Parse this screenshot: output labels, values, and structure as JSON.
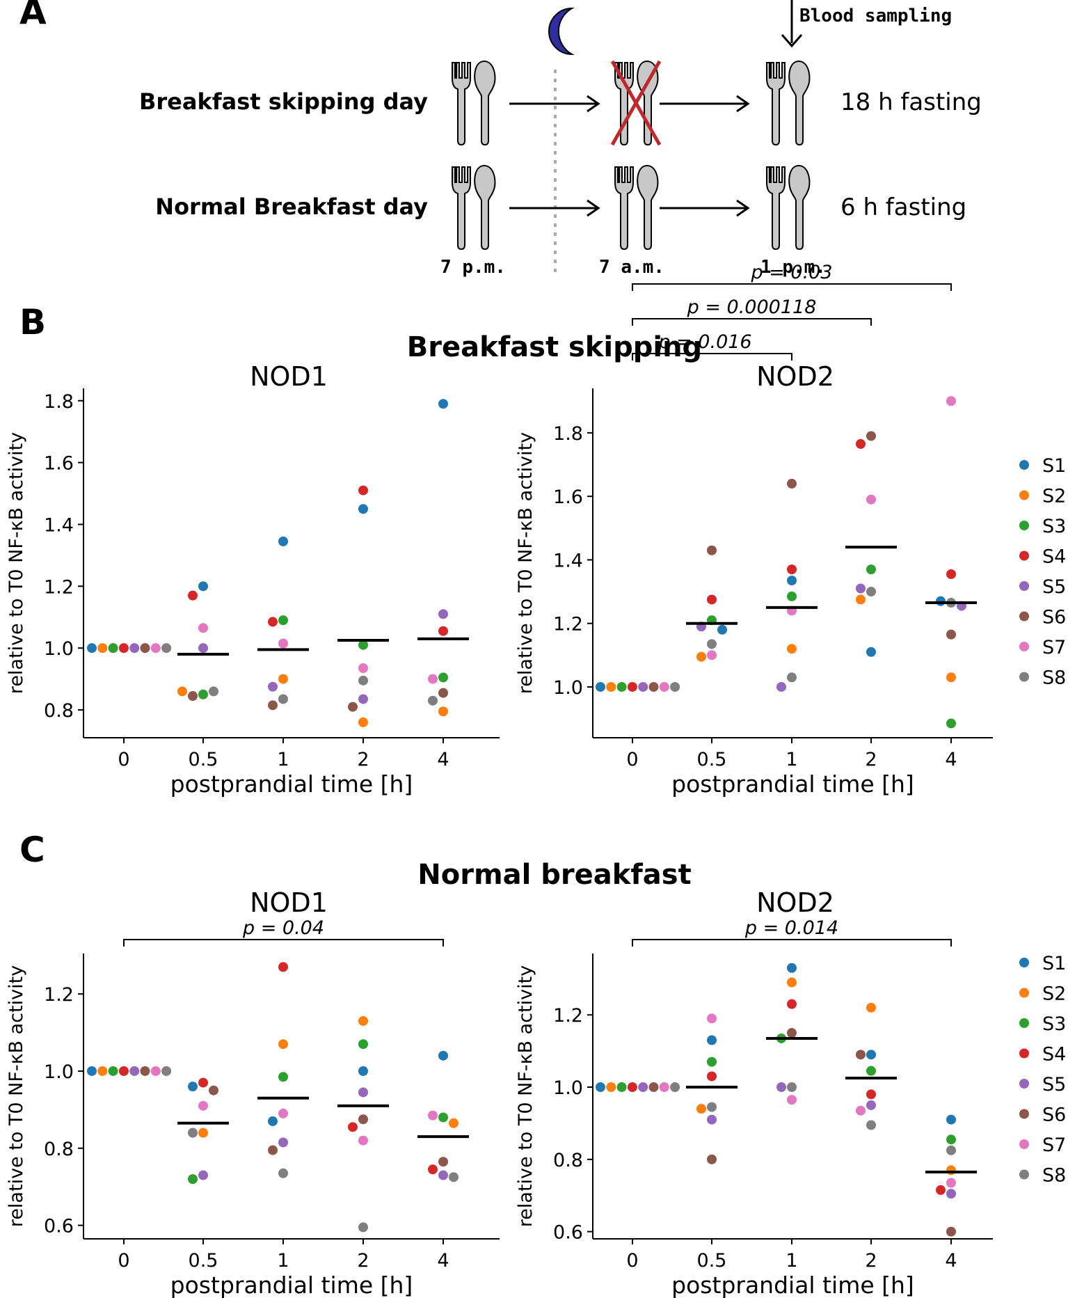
{
  "panel_labels": {
    "a": "A",
    "b": "B",
    "c": "C"
  },
  "schedule": {
    "row1_label": "Breakfast skipping day",
    "row2_label": "Normal Breakfast day",
    "row1_fasting": "18 h fasting",
    "row2_fasting": "6 h fasting",
    "times": [
      "7 p.m.",
      "7 a.m.",
      "1 p.m."
    ],
    "blood_sampling": "Blood sampling",
    "moon_color": "#2e2ea0",
    "cross_color": "#c0282d"
  },
  "sections": [
    {
      "title": "Breakfast skipping"
    },
    {
      "title": "Normal breakfast"
    }
  ],
  "legend": [
    {
      "label": "S1",
      "color": "#1f77b4"
    },
    {
      "label": "S2",
      "color": "#ff7f0e"
    },
    {
      "label": "S3",
      "color": "#2ca02c"
    },
    {
      "label": "S4",
      "color": "#d62728"
    },
    {
      "label": "S5",
      "color": "#9467bd"
    },
    {
      "label": "S6",
      "color": "#8c564b"
    },
    {
      "label": "S7",
      "color": "#e377c2"
    },
    {
      "label": "S8",
      "color": "#7f7f7f"
    }
  ],
  "chart_data": [
    {
      "type": "scatter",
      "title": "NOD1",
      "section": "Breakfast skipping",
      "xlabel": "postprandial time [h]",
      "ylabel": "relative to T0 NF-κB activity",
      "categories": [
        "0",
        "0.5",
        "1",
        "2",
        "4"
      ],
      "ylim": [
        0.71,
        1.84
      ],
      "yticks": [
        0.8,
        1.0,
        1.2,
        1.4,
        1.6,
        1.8
      ],
      "ytick_labels": [
        "0.8",
        "1.0",
        "1.2",
        "1.4",
        "1.6",
        "1.8"
      ],
      "means": [
        1.0,
        0.98,
        0.995,
        1.025,
        1.03
      ],
      "points": [
        [
          {
            "s": 0,
            "y": 1.0
          },
          {
            "s": 1,
            "y": 1.0
          },
          {
            "s": 2,
            "y": 1.0
          },
          {
            "s": 3,
            "y": 1.0
          },
          {
            "s": 4,
            "y": 1.0
          },
          {
            "s": 5,
            "y": 1.0
          },
          {
            "s": 6,
            "y": 1.0
          },
          {
            "s": 7,
            "y": 1.0
          }
        ],
        [
          {
            "s": 0,
            "y": 1.2
          },
          {
            "s": 3,
            "y": 1.17
          },
          {
            "s": 6,
            "y": 1.065
          },
          {
            "s": 4,
            "y": 1.0
          },
          {
            "s": 2,
            "y": 0.85
          },
          {
            "s": 5,
            "y": 0.845
          },
          {
            "s": 7,
            "y": 0.86
          },
          {
            "s": 1,
            "y": 0.86
          }
        ],
        [
          {
            "s": 0,
            "y": 1.345
          },
          {
            "s": 2,
            "y": 1.09
          },
          {
            "s": 3,
            "y": 1.085
          },
          {
            "s": 6,
            "y": 1.015
          },
          {
            "s": 1,
            "y": 0.9
          },
          {
            "s": 4,
            "y": 0.875
          },
          {
            "s": 7,
            "y": 0.835
          },
          {
            "s": 5,
            "y": 0.815
          }
        ],
        [
          {
            "s": 3,
            "y": 1.51
          },
          {
            "s": 0,
            "y": 1.45
          },
          {
            "s": 2,
            "y": 1.01
          },
          {
            "s": 6,
            "y": 0.935
          },
          {
            "s": 7,
            "y": 0.895
          },
          {
            "s": 4,
            "y": 0.835
          },
          {
            "s": 5,
            "y": 0.81
          },
          {
            "s": 1,
            "y": 0.76
          }
        ],
        [
          {
            "s": 0,
            "y": 1.79
          },
          {
            "s": 4,
            "y": 1.11
          },
          {
            "s": 3,
            "y": 1.055
          },
          {
            "s": 2,
            "y": 0.905
          },
          {
            "s": 6,
            "y": 0.9
          },
          {
            "s": 5,
            "y": 0.855
          },
          {
            "s": 7,
            "y": 0.83
          },
          {
            "s": 1,
            "y": 0.795
          }
        ]
      ],
      "brackets": []
    },
    {
      "type": "scatter",
      "title": "NOD2",
      "section": "Breakfast skipping",
      "xlabel": "postprandial time [h]",
      "ylabel": "relative to T0 NF-κB activity",
      "categories": [
        "0",
        "0.5",
        "1",
        "2",
        "4"
      ],
      "ylim": [
        0.84,
        1.94
      ],
      "yticks": [
        1.0,
        1.2,
        1.4,
        1.6,
        1.8
      ],
      "ytick_labels": [
        "1.0",
        "1.2",
        "1.4",
        "1.6",
        "1.8"
      ],
      "means": [
        1.0,
        1.2,
        1.25,
        1.44,
        1.265
      ],
      "points": [
        [
          {
            "s": 0,
            "y": 1.0
          },
          {
            "s": 1,
            "y": 1.0
          },
          {
            "s": 2,
            "y": 1.0
          },
          {
            "s": 3,
            "y": 1.0
          },
          {
            "s": 4,
            "y": 1.0
          },
          {
            "s": 5,
            "y": 1.0
          },
          {
            "s": 6,
            "y": 1.0
          },
          {
            "s": 7,
            "y": 1.0
          }
        ],
        [
          {
            "s": 5,
            "y": 1.43
          },
          {
            "s": 3,
            "y": 1.275
          },
          {
            "s": 2,
            "y": 1.21
          },
          {
            "s": 4,
            "y": 1.19
          },
          {
            "s": 0,
            "y": 1.18
          },
          {
            "s": 7,
            "y": 1.135
          },
          {
            "s": 6,
            "y": 1.1
          },
          {
            "s": 1,
            "y": 1.095
          }
        ],
        [
          {
            "s": 5,
            "y": 1.64
          },
          {
            "s": 3,
            "y": 1.37
          },
          {
            "s": 0,
            "y": 1.335
          },
          {
            "s": 2,
            "y": 1.285
          },
          {
            "s": 6,
            "y": 1.24
          },
          {
            "s": 1,
            "y": 1.12
          },
          {
            "s": 7,
            "y": 1.03
          },
          {
            "s": 4,
            "y": 1.0
          }
        ],
        [
          {
            "s": 5,
            "y": 1.79
          },
          {
            "s": 3,
            "y": 1.765
          },
          {
            "s": 6,
            "y": 1.59
          },
          {
            "s": 2,
            "y": 1.37
          },
          {
            "s": 7,
            "y": 1.3
          },
          {
            "s": 4,
            "y": 1.31
          },
          {
            "s": 1,
            "y": 1.275
          },
          {
            "s": 0,
            "y": 1.11
          }
        ],
        [
          {
            "s": 6,
            "y": 1.9
          },
          {
            "s": 3,
            "y": 1.355
          },
          {
            "s": 7,
            "y": 1.265
          },
          {
            "s": 0,
            "y": 1.27
          },
          {
            "s": 4,
            "y": 1.255
          },
          {
            "s": 5,
            "y": 1.165
          },
          {
            "s": 1,
            "y": 1.03
          },
          {
            "s": 2,
            "y": 0.885
          }
        ]
      ],
      "brackets": [
        {
          "from": 0,
          "to": 2,
          "label": "p = 0.016"
        },
        {
          "from": 0,
          "to": 3,
          "label": "p = 0.000118"
        },
        {
          "from": 0,
          "to": 4,
          "label": "p = 0.03"
        }
      ]
    },
    {
      "type": "scatter",
      "title": "NOD1",
      "section": "Normal breakfast",
      "xlabel": "postprandial time [h]",
      "ylabel": "relative to T0 NF-κB activity",
      "categories": [
        "0",
        "0.5",
        "1",
        "2",
        "4"
      ],
      "ylim": [
        0.565,
        1.305
      ],
      "yticks": [
        0.6,
        0.8,
        1.0,
        1.2
      ],
      "ytick_labels": [
        "0.6",
        "0.8",
        "1.0",
        "1.2"
      ],
      "means": [
        1.0,
        0.865,
        0.93,
        0.91,
        0.83
      ],
      "points": [
        [
          {
            "s": 0,
            "y": 1.0
          },
          {
            "s": 1,
            "y": 1.0
          },
          {
            "s": 2,
            "y": 1.0
          },
          {
            "s": 3,
            "y": 1.0
          },
          {
            "s": 4,
            "y": 1.0
          },
          {
            "s": 5,
            "y": 1.0
          },
          {
            "s": 6,
            "y": 1.0
          },
          {
            "s": 7,
            "y": 1.0
          }
        ],
        [
          {
            "s": 3,
            "y": 0.97
          },
          {
            "s": 0,
            "y": 0.96
          },
          {
            "s": 5,
            "y": 0.95
          },
          {
            "s": 6,
            "y": 0.91
          },
          {
            "s": 1,
            "y": 0.84
          },
          {
            "s": 7,
            "y": 0.84
          },
          {
            "s": 4,
            "y": 0.73
          },
          {
            "s": 2,
            "y": 0.72
          }
        ],
        [
          {
            "s": 3,
            "y": 1.27
          },
          {
            "s": 1,
            "y": 1.07
          },
          {
            "s": 2,
            "y": 0.985
          },
          {
            "s": 6,
            "y": 0.89
          },
          {
            "s": 0,
            "y": 0.87
          },
          {
            "s": 4,
            "y": 0.815
          },
          {
            "s": 5,
            "y": 0.795
          },
          {
            "s": 7,
            "y": 0.735
          }
        ],
        [
          {
            "s": 1,
            "y": 1.13
          },
          {
            "s": 2,
            "y": 1.07
          },
          {
            "s": 0,
            "y": 1.0
          },
          {
            "s": 4,
            "y": 0.945
          },
          {
            "s": 5,
            "y": 0.875
          },
          {
            "s": 3,
            "y": 0.855
          },
          {
            "s": 6,
            "y": 0.82
          },
          {
            "s": 7,
            "y": 0.595
          }
        ],
        [
          {
            "s": 0,
            "y": 1.04
          },
          {
            "s": 2,
            "y": 0.88
          },
          {
            "s": 6,
            "y": 0.885
          },
          {
            "s": 1,
            "y": 0.865
          },
          {
            "s": 5,
            "y": 0.765
          },
          {
            "s": 3,
            "y": 0.745
          },
          {
            "s": 4,
            "y": 0.73
          },
          {
            "s": 7,
            "y": 0.725
          }
        ]
      ],
      "brackets": [
        {
          "from": 0,
          "to": 4,
          "label": "p = 0.04"
        }
      ]
    },
    {
      "type": "scatter",
      "title": "NOD2",
      "section": "Normal breakfast",
      "xlabel": "postprandial time [h]",
      "ylabel": "relative to T0 NF-κB activity",
      "categories": [
        "0",
        "0.5",
        "1",
        "2",
        "4"
      ],
      "ylim": [
        0.58,
        1.37
      ],
      "yticks": [
        0.6,
        0.8,
        1.0,
        1.2
      ],
      "ytick_labels": [
        "0.6",
        "0.8",
        "1.0",
        "1.2"
      ],
      "means": [
        1.0,
        1.0,
        1.135,
        1.025,
        0.765
      ],
      "points": [
        [
          {
            "s": 0,
            "y": 1.0
          },
          {
            "s": 1,
            "y": 1.0
          },
          {
            "s": 2,
            "y": 1.0
          },
          {
            "s": 3,
            "y": 1.0
          },
          {
            "s": 4,
            "y": 1.0
          },
          {
            "s": 5,
            "y": 1.0
          },
          {
            "s": 6,
            "y": 1.0
          },
          {
            "s": 7,
            "y": 1.0
          }
        ],
        [
          {
            "s": 6,
            "y": 1.19
          },
          {
            "s": 0,
            "y": 1.13
          },
          {
            "s": 2,
            "y": 1.07
          },
          {
            "s": 3,
            "y": 1.03
          },
          {
            "s": 7,
            "y": 0.945
          },
          {
            "s": 1,
            "y": 0.94
          },
          {
            "s": 4,
            "y": 0.91
          },
          {
            "s": 5,
            "y": 0.8
          }
        ],
        [
          {
            "s": 0,
            "y": 1.33
          },
          {
            "s": 1,
            "y": 1.29
          },
          {
            "s": 3,
            "y": 1.23
          },
          {
            "s": 5,
            "y": 1.15
          },
          {
            "s": 2,
            "y": 1.135
          },
          {
            "s": 7,
            "y": 1.0
          },
          {
            "s": 4,
            "y": 1.0
          },
          {
            "s": 6,
            "y": 0.965
          }
        ],
        [
          {
            "s": 1,
            "y": 1.22
          },
          {
            "s": 0,
            "y": 1.09
          },
          {
            "s": 5,
            "y": 1.09
          },
          {
            "s": 2,
            "y": 1.045
          },
          {
            "s": 3,
            "y": 0.98
          },
          {
            "s": 4,
            "y": 0.95
          },
          {
            "s": 6,
            "y": 0.935
          },
          {
            "s": 7,
            "y": 0.895
          }
        ],
        [
          {
            "s": 0,
            "y": 0.91
          },
          {
            "s": 2,
            "y": 0.855
          },
          {
            "s": 7,
            "y": 0.825
          },
          {
            "s": 1,
            "y": 0.77
          },
          {
            "s": 6,
            "y": 0.735
          },
          {
            "s": 3,
            "y": 0.715
          },
          {
            "s": 4,
            "y": 0.705
          },
          {
            "s": 5,
            "y": 0.6
          }
        ]
      ],
      "brackets": [
        {
          "from": 0,
          "to": 4,
          "label": "p = 0.014"
        }
      ]
    }
  ]
}
